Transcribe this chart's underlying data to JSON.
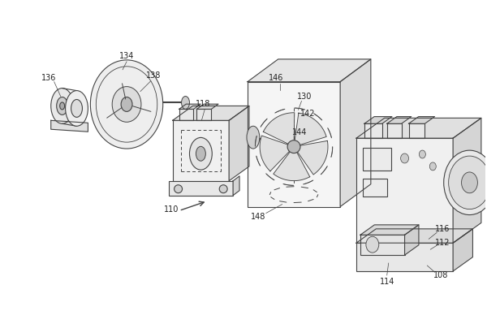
{
  "bg_color": "#ffffff",
  "line_color": "#444444",
  "label_color": "#222222",
  "fig_width": 6.0,
  "fig_height": 3.83,
  "dpi": 100,
  "label_fs": 7.0,
  "lw": 0.8
}
